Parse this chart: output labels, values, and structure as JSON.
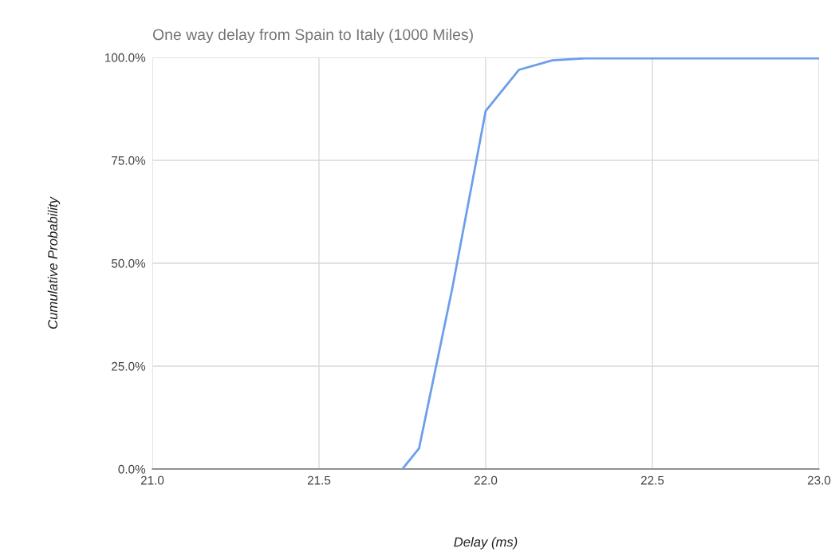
{
  "chart_data": {
    "type": "line",
    "title": "One way delay from Spain to Italy (1000 Miles)",
    "xlabel": "Delay (ms)",
    "ylabel": "Cumulative Probability",
    "x": [
      21.75,
      21.8,
      21.9,
      22.0,
      22.1,
      22.2,
      22.3,
      22.5,
      23.0
    ],
    "series": [
      {
        "color": "#6d9eeb",
        "values": [
          0,
          5,
          44,
          87,
          97,
          99.3,
          99.8,
          99.8,
          99.8
        ]
      }
    ],
    "xlim": [
      21.0,
      23.0
    ],
    "xticks": [
      {
        "value": 21.0,
        "label": "21.0"
      },
      {
        "value": 21.5,
        "label": "21.5"
      },
      {
        "value": 22.0,
        "label": "22.0"
      },
      {
        "value": 22.5,
        "label": "22.5"
      },
      {
        "value": 23.0,
        "label": "23.0"
      }
    ],
    "ylim": [
      0,
      100
    ],
    "yticks": [
      {
        "value": 0,
        "label": "0.0%"
      },
      {
        "value": 25,
        "label": "25.0%"
      },
      {
        "value": 50,
        "label": "50.0%"
      },
      {
        "value": 75,
        "label": "75.0%"
      },
      {
        "value": 100,
        "label": "100.0%"
      }
    ],
    "grid": true,
    "legend": false,
    "marker": "none",
    "line_style": "solid"
  }
}
